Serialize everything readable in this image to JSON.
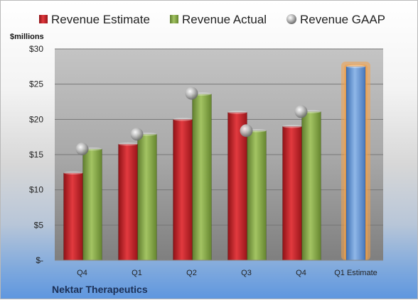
{
  "chart_data": {
    "type": "bar",
    "categories": [
      "Q4",
      "Q1",
      "Q2",
      "Q3",
      "Q4",
      "Q1 Estimate"
    ],
    "series": [
      {
        "name": "Revenue Estimate",
        "values": [
          12.4,
          16.5,
          20.0,
          21.0,
          19.0,
          null
        ]
      },
      {
        "name": "Revenue Actual",
        "values": [
          15.8,
          17.9,
          23.6,
          18.4,
          21.1,
          null
        ]
      },
      {
        "name": "Revenue GAAP",
        "values": [
          15.8,
          17.9,
          23.7,
          18.4,
          21.1,
          null
        ]
      },
      {
        "name": "",
        "values": [
          null,
          null,
          null,
          null,
          null,
          27.5
        ]
      }
    ],
    "ylabel": "$millions",
    "yticks": [
      "$-",
      "$5",
      "$10",
      "$15",
      "$20",
      "$25",
      "$30"
    ],
    "ylim": [
      0,
      30
    ],
    "grid": true,
    "legend": "top",
    "company": "Nektar Therapeutics",
    "colors": {
      "estimate": "#c42127",
      "actual": "#8aab4b",
      "gaap": "#a9a9a9",
      "forecast": "#6b9bd6",
      "forecast_glow": "#f4a24a"
    }
  }
}
